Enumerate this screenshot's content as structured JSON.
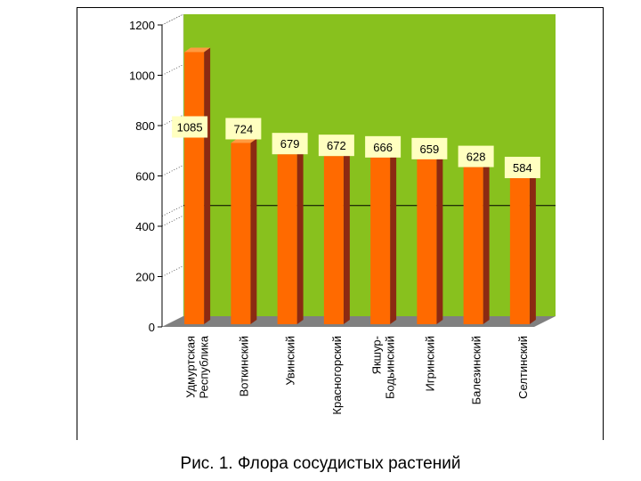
{
  "caption": "Рис. 1. Флора сосудистых растений",
  "chart_data": {
    "type": "bar",
    "categories": [
      [
        "Удмуртская",
        "Республика"
      ],
      [
        "Воткинский"
      ],
      [
        "Увинский"
      ],
      [
        "Красногорский"
      ],
      [
        "Якшур-",
        "Бодьинский"
      ],
      [
        "Игринский"
      ],
      [
        "Балезинский"
      ],
      [
        "Селтинский"
      ]
    ],
    "values": [
      1085,
      724,
      679,
      672,
      666,
      659,
      628,
      584
    ],
    "ylim": [
      0,
      1200
    ],
    "yticks": [
      0,
      200,
      400,
      600,
      800,
      1000,
      1200
    ],
    "reference_line": 440,
    "colors": {
      "wall": "#88c11e",
      "floor": "#808080",
      "bar_front": "#ff6a00",
      "bar_side": "#8b2a12",
      "bar_top": "#ff9a40",
      "label_bg": "#ffffc0"
    }
  }
}
